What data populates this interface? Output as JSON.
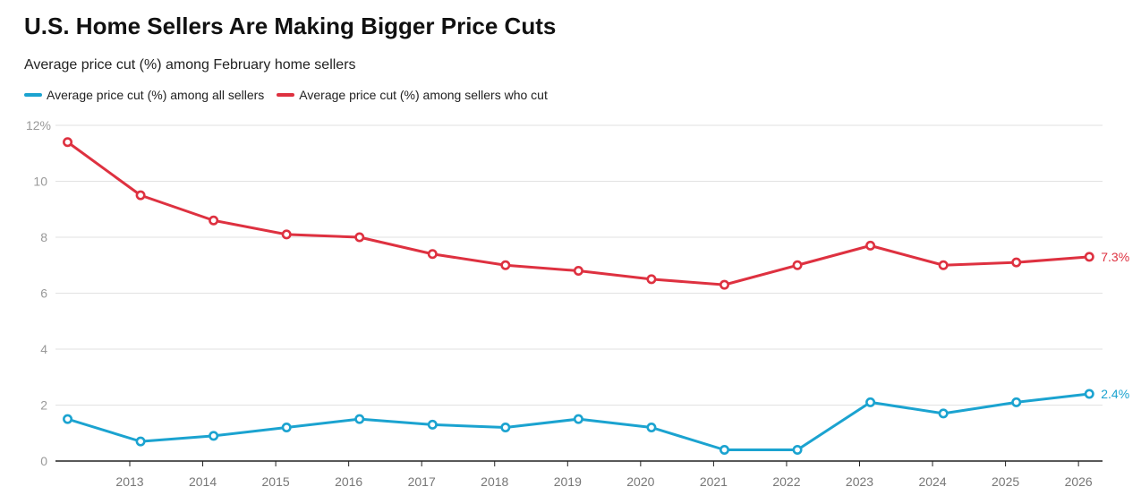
{
  "title": "U.S. Home Sellers Are Making Bigger Price Cuts",
  "subtitle": "Average price cut (%) among February home sellers",
  "chart_data": {
    "type": "line",
    "title": "U.S. Home Sellers Are Making Bigger Price Cuts",
    "subtitle": "Average price cut (%) among February home sellers",
    "x": [
      "2012-02",
      "2013-02",
      "2014-02",
      "2015-02",
      "2016-02",
      "2017-02",
      "2018-02",
      "2019-02",
      "2020-02",
      "2021-02",
      "2022-02",
      "2023-02",
      "2024-02",
      "2025-02",
      "2026-02"
    ],
    "x_ticks": [
      "2013",
      "2014",
      "2015",
      "2016",
      "2017",
      "2018",
      "2019",
      "2020",
      "2021",
      "2022",
      "2023",
      "2024",
      "2025",
      "2026"
    ],
    "y_ticks": [
      "0",
      "2",
      "4",
      "6",
      "8",
      "10",
      "12%"
    ],
    "ylim": [
      0,
      12
    ],
    "grid": true,
    "legend_placement": "top-left",
    "series": [
      {
        "name": "Average price cut (%) among all sellers",
        "color": "#1ba3d0",
        "end_label": "2.4%",
        "values": [
          1.5,
          0.7,
          0.9,
          1.2,
          1.5,
          1.3,
          1.2,
          1.5,
          1.2,
          0.4,
          0.4,
          2.1,
          1.7,
          2.1,
          2.4
        ]
      },
      {
        "name": "Average price cut (%) among sellers who cut",
        "color": "#de3140",
        "end_label": "7.3%",
        "values": [
          11.4,
          9.5,
          8.6,
          8.1,
          8.0,
          7.4,
          7.0,
          6.8,
          6.5,
          6.3,
          7.0,
          7.7,
          7.0,
          7.1,
          7.3
        ]
      }
    ]
  }
}
